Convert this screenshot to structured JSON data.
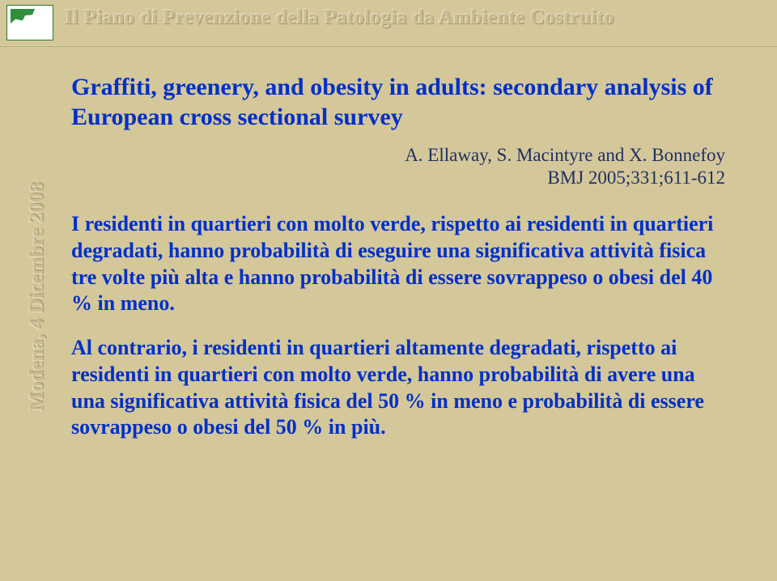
{
  "header": {
    "title": "Il Piano di Prevenzione della Patologia da Ambiente Costruito"
  },
  "sidebar": {
    "label": "Modena, 4 Dicembre 2008"
  },
  "slide": {
    "title": "Graffiti, greenery, and obesity in adults: secondary analysis of European cross sectional survey",
    "authors": "A. Ellaway, S. Macintyre and X. Bonnefoy",
    "citation": "BMJ 2005;331;611-612",
    "p1": "I residenti in quartieri con molto verde, rispetto ai residenti in quartieri degradati,  hanno probabilità di eseguire  una significativa  attività fisica tre volte più alta e hanno probabilità di essere sovrappeso o obesi  del 40 % in meno.",
    "p2": "Al contrario, i residenti in quartieri altamente degradati, rispetto ai residenti in quartieri con molto verde, hanno probabilità di avere una una significativa attività fisica  del 50 % in meno  e  probabilità di essere sovrappeso o obesi del 50 % in più."
  }
}
